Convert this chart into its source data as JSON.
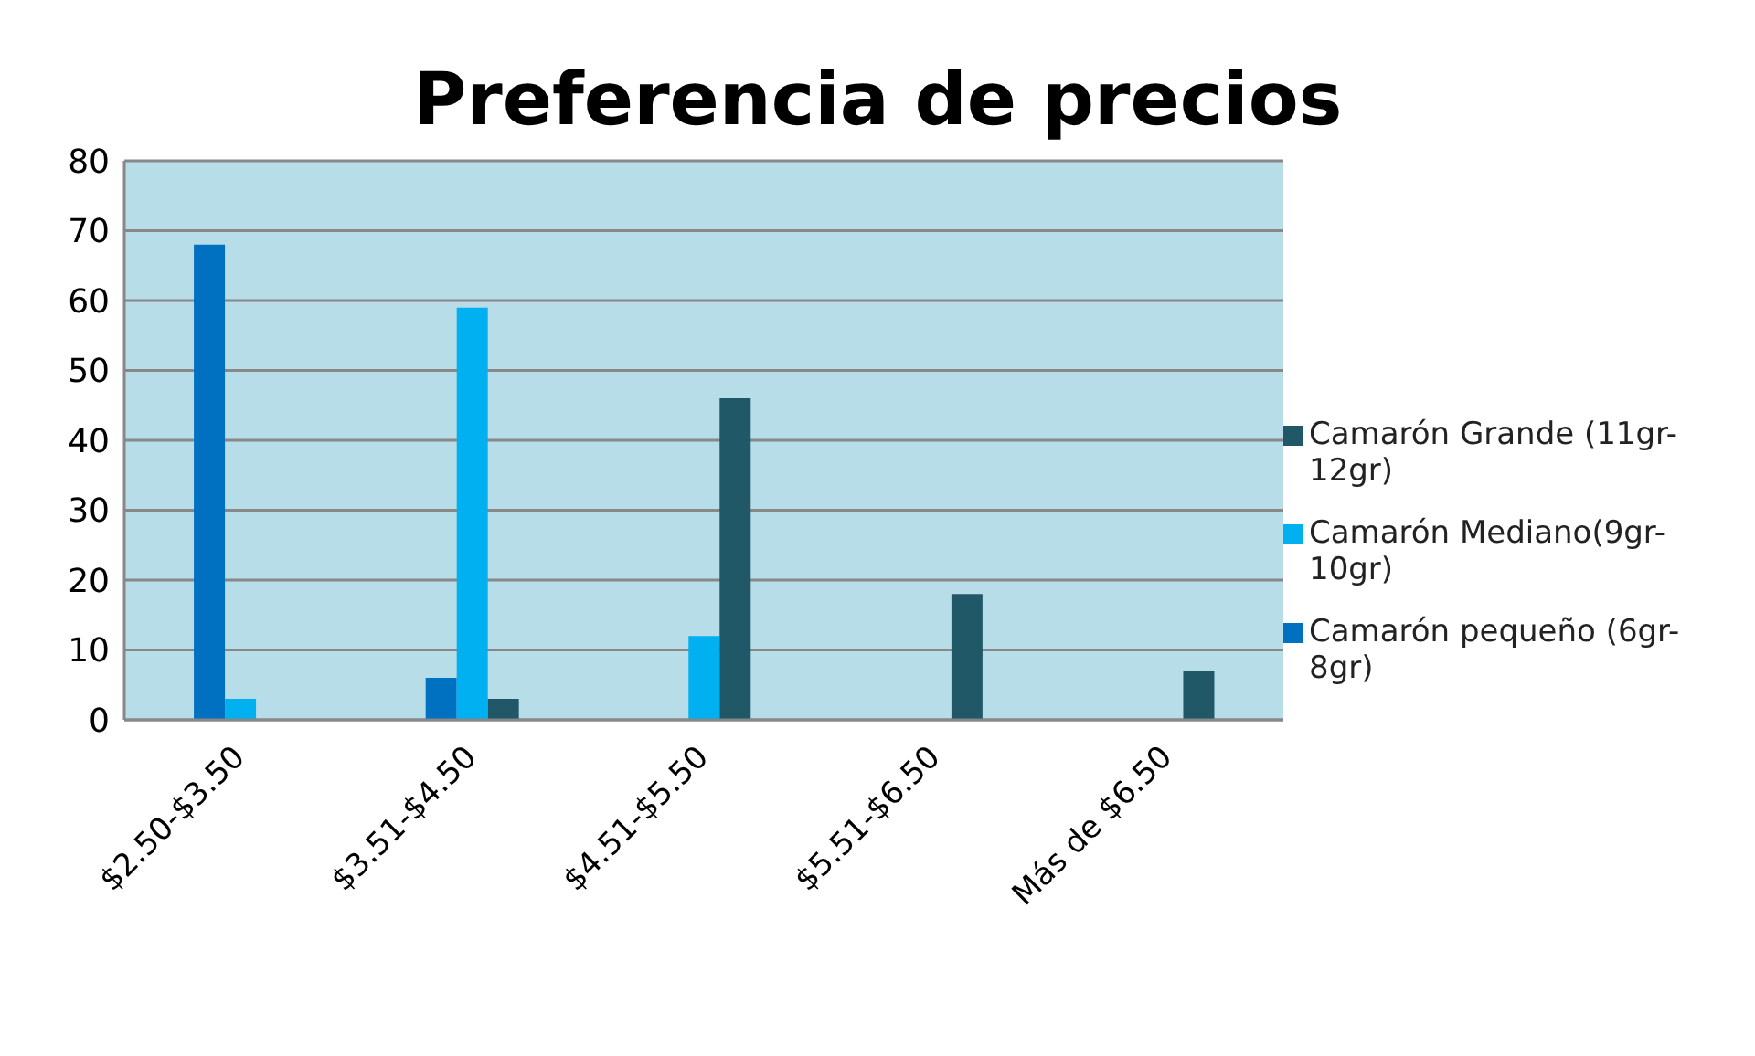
{
  "chart_data": {
    "type": "bar",
    "title": "Preferencia de precios",
    "categories": [
      "$2.50-$3.50",
      "$3.51-$4.50",
      "$4.51-$5.50",
      "$5.51-$6.50",
      "Más de $6.50"
    ],
    "series": [
      {
        "name": "Camarón pequeño (6gr-8gr)",
        "color": "#0070c0",
        "values": [
          68,
          6,
          null,
          null,
          null
        ]
      },
      {
        "name": "Camarón Mediano(9gr-10gr)",
        "color": "#00b0f0",
        "values": [
          3,
          59,
          12,
          null,
          null
        ]
      },
      {
        "name": "Camarón Grande (11gr-12gr)",
        "color": "#215867",
        "values": [
          null,
          3,
          46,
          18,
          7
        ]
      }
    ],
    "ylim": [
      0,
      80
    ],
    "yticks": [
      0,
      10,
      20,
      30,
      40,
      50,
      60,
      70,
      80
    ],
    "grid": "y",
    "legend": "right"
  }
}
